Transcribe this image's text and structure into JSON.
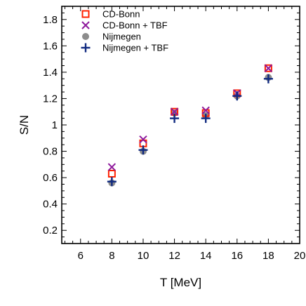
{
  "chart_data": {
    "type": "scatter",
    "xlabel": "T [MeV]",
    "ylabel": "S/N",
    "xlim": [
      4.8,
      20
    ],
    "ylim": [
      0.1,
      1.9
    ],
    "x_ticks": [
      6,
      8,
      10,
      12,
      14,
      16,
      18,
      20
    ],
    "y_ticks": [
      0.2,
      0.4,
      0.6,
      0.8,
      1,
      1.2,
      1.4,
      1.6,
      1.8
    ],
    "x_minor_step": 0.5,
    "y_minor_step": 0.05,
    "grid": false,
    "legend_position": "top-left",
    "series": [
      {
        "name": "CD-Bonn",
        "marker": "open-square",
        "color": "#ff2200",
        "x": [
          8,
          10,
          12,
          14,
          16,
          18
        ],
        "y": [
          0.63,
          0.86,
          1.1,
          1.09,
          1.24,
          1.43
        ]
      },
      {
        "name": "CD-Bonn + TBF",
        "marker": "x",
        "color": "#8e1a9c",
        "x": [
          8,
          10,
          12,
          14,
          16,
          18
        ],
        "y": [
          0.68,
          0.89,
          1.1,
          1.11,
          1.24,
          1.43
        ]
      },
      {
        "name": "Nijmegen",
        "marker": "filled-circle",
        "color": "#8c8c8c",
        "x": [
          8,
          10,
          12,
          14,
          16,
          18
        ],
        "y": [
          0.56,
          0.8,
          1.09,
          1.07,
          1.22,
          1.36
        ]
      },
      {
        "name": "Nijmegen + TBF",
        "marker": "plus",
        "color": "#102a80",
        "x": [
          8,
          10,
          12,
          14,
          16,
          18
        ],
        "y": [
          0.57,
          0.81,
          1.05,
          1.05,
          1.22,
          1.35
        ]
      }
    ]
  }
}
